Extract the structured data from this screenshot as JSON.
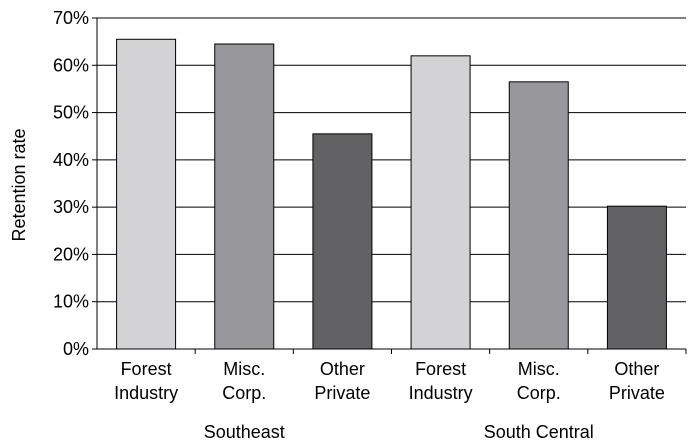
{
  "chart_data": {
    "type": "bar",
    "title": "",
    "xlabel": "",
    "ylabel": "Retention rate",
    "ylim": [
      0,
      70
    ],
    "yticks": [
      "0%",
      "10%",
      "20%",
      "30%",
      "40%",
      "50%",
      "60%",
      "70%"
    ],
    "grid": "horizontal",
    "groups": [
      {
        "name": "Southeast",
        "bars": [
          {
            "label_line1": "Forest",
            "label_line2": "Industry",
            "value": 65.5,
            "color": "#d3d3d5"
          },
          {
            "label_line1": "Misc.",
            "label_line2": "Corp.",
            "value": 64.5,
            "color": "#98989c"
          },
          {
            "label_line1": "Other",
            "label_line2": "Private",
            "value": 45.5,
            "color": "#626264"
          }
        ]
      },
      {
        "name": "South Central",
        "bars": [
          {
            "label_line1": "Forest",
            "label_line2": "Industry",
            "value": 62.0,
            "color": "#d3d3d5"
          },
          {
            "label_line1": "Misc.",
            "label_line2": "Corp.",
            "value": 56.5,
            "color": "#98989c"
          },
          {
            "label_line1": "Other",
            "label_line2": "Private",
            "value": 30.2,
            "color": "#626264"
          }
        ]
      }
    ]
  }
}
